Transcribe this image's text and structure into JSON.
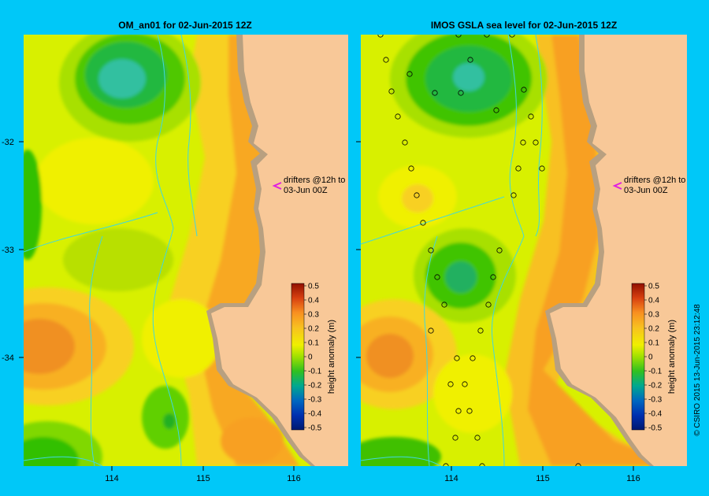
{
  "left_panel": {
    "title": "OM_an01  for 02-Jun-2015 12Z",
    "drifter_note_line1": "drifters @12h to",
    "drifter_note_line2": "03-Jun 00Z"
  },
  "right_panel": {
    "title": "IMOS GSLA sea level  for 02-Jun-2015 12Z",
    "drifter_note_line1": "drifters @12h to",
    "drifter_note_line2": "03-Jun 00Z"
  },
  "axes": {
    "lat_ticks": [
      "-32",
      "-33",
      "-34"
    ],
    "lon_ticks": [
      "114",
      "115",
      "116"
    ]
  },
  "colorbar": {
    "label": "height anomaly (m)",
    "ticks": [
      "0.5",
      "0.4",
      "0.3",
      "0.2",
      "0.1",
      "0",
      "-0.1",
      "-0.2",
      "-0.3",
      "-0.4",
      "-0.5"
    ],
    "colors": [
      "#a01808",
      "#c83808",
      "#e86010",
      "#f89020",
      "#f8c020",
      "#f0f000",
      "#a8e800",
      "#40c800",
      "#00b070",
      "#0078b0",
      "#0040c0",
      "#001890"
    ]
  },
  "credit": "© CSIRO 2015   13-Jun-2015 23:12:48",
  "colors": {
    "background": "#00c8f8",
    "land": "#f8c898",
    "shelf": "#b8a080",
    "contour_line": "#40d8e0"
  }
}
